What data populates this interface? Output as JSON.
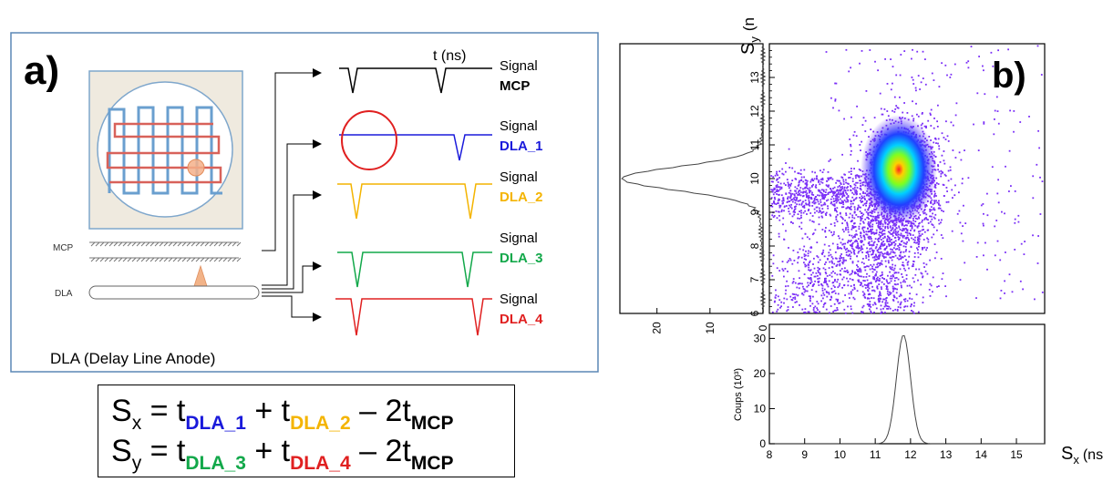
{
  "panel_a": {
    "label": "a)",
    "caption": "DLA (Delay Line Anode)",
    "labels": {
      "mcp": "MCP",
      "dla": "DLA"
    },
    "time_label": "t (ns)",
    "signals": [
      {
        "line1": "Signal",
        "line2": "MCP",
        "color": "#000000"
      },
      {
        "line1": "Signal",
        "line2": "DLA_1",
        "color": "#1a1adb"
      },
      {
        "line1": "Signal",
        "line2": "DLA_2",
        "color": "#f4b400"
      },
      {
        "line1": "Signal",
        "line2": "DLA_3",
        "color": "#12a84a"
      },
      {
        "line1": "Signal",
        "line2": "DLA_4",
        "color": "#e02020"
      }
    ]
  },
  "formula": {
    "row1": {
      "lhs": "S",
      "lhs_sub": "x",
      "eq": " = t",
      "sub1": "DLA_1",
      "plus": " + t",
      "sub2": "DLA_2",
      "minus": " – 2t",
      "sub3": "MCP"
    },
    "row2": {
      "lhs": "S",
      "lhs_sub": "y",
      "eq": " = t",
      "sub1": "DLA_3",
      "plus": " + t",
      "sub2": "DLA_4",
      "minus": " – 2t",
      "sub3": "MCP"
    }
  },
  "panel_b": {
    "label": "b)",
    "ylabel": "S",
    "ylabel_sub": "y",
    "ylabel_unit": "(n",
    "xlabel": "S",
    "xlabel_sub": "x",
    "xlabel_unit": "(ns)",
    "bottom_ylabel": "Coups (10³)",
    "colors": {
      "points": "#7b2ff7",
      "core": "#00c8ff",
      "hot": "#ff3030"
    }
  },
  "chart_data": [
    {
      "type": "scatter",
      "title": "",
      "xlabel": "",
      "ylabel": "S_y (n",
      "xlim": [
        8,
        15.8
      ],
      "ylim": [
        6,
        14
      ],
      "yticks": [
        6,
        7,
        8,
        9,
        10,
        11,
        12,
        13
      ],
      "density_peak": {
        "x": 11.8,
        "y": 10
      }
    },
    {
      "type": "line",
      "title": "",
      "xlabel": "",
      "ylabel": "",
      "orientation": "horizontal",
      "xlim": [
        0,
        27
      ],
      "xticks": [
        20,
        10,
        0
      ],
      "ylim": [
        6,
        14
      ],
      "peak": {
        "x": 26,
        "y": 10
      }
    },
    {
      "type": "line",
      "title": "",
      "xlabel": "S_x (ns)",
      "ylabel": "Coups (10³)",
      "xlim": [
        8,
        15.8
      ],
      "ylim": [
        0,
        34
      ],
      "xticks": [
        8,
        9,
        10,
        11,
        12,
        13,
        14,
        15
      ],
      "yticks": [
        0,
        10,
        20,
        30
      ],
      "peak": {
        "x": 11.8,
        "y": 31
      }
    }
  ]
}
